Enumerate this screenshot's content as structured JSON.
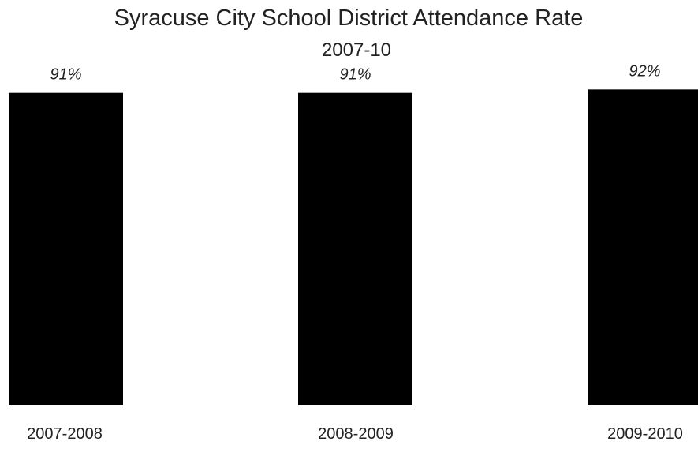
{
  "chart_data": {
    "type": "bar",
    "title": "Syracuse City School District Attendance Rate",
    "subtitle": "2007-10",
    "categories": [
      "2007-2008",
      "2008-2009",
      "2009-2010"
    ],
    "values": [
      91,
      91,
      92
    ],
    "data_labels": [
      "91%",
      "91%",
      "92%"
    ],
    "xlabel": "",
    "ylabel": "",
    "ylim": [
      0,
      100
    ],
    "grid": false,
    "legend": "none",
    "bar_color": "#000000"
  }
}
